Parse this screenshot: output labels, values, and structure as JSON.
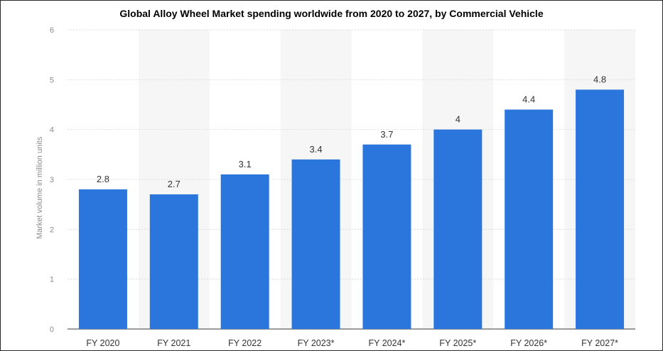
{
  "chart_data": {
    "type": "bar",
    "title": "Global Alloy Wheel Market spending worldwide from 2020 to 2027, by Commercial Vehicle",
    "xlabel": "",
    "ylabel": "Market volume in million units",
    "categories": [
      "FY 2020",
      "FY 2021",
      "FY 2022",
      "FY 2023*",
      "FY 2024*",
      "FY 2025*",
      "FY 2026*",
      "FY 2027*"
    ],
    "values": [
      2.8,
      2.7,
      3.1,
      3.4,
      3.7,
      4,
      4.4,
      4.8
    ],
    "data_labels": [
      "2.8",
      "2.7",
      "3.1",
      "3.4",
      "3.7",
      "4",
      "4.4",
      "4.8"
    ],
    "yticks": [
      "0",
      "1",
      "2",
      "3",
      "4",
      "5",
      "6"
    ],
    "ylim": [
      0,
      6
    ],
    "grid": true,
    "bar_color": "#2b76dc",
    "band_color": "#f6f6f6",
    "grid_color": "#dcdcdc"
  }
}
